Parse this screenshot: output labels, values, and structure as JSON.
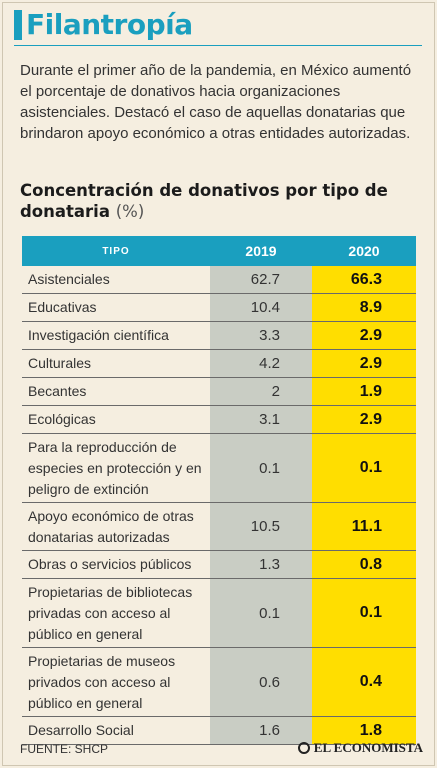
{
  "header": {
    "title": "Filantropía",
    "intro": "Durante el primer año de la pandemia, en México aumentó el porcentaje de donativos hacia organizaciones asistenciales. Destacó el caso de aquellas donatarias que brindaron apoyo económico a otras entidades autorizadas."
  },
  "chart_data": {
    "type": "table",
    "title": "Concentración de donativos por tipo de donataria",
    "unit": "(%)",
    "columns": [
      "TIPO",
      "2019",
      "2020"
    ],
    "rows": [
      {
        "tipo": "Asistenciales",
        "v2019": "62.7",
        "v2020": "66.3"
      },
      {
        "tipo": "Educativas",
        "v2019": "10.4",
        "v2020": "8.9"
      },
      {
        "tipo": "Investigación científica",
        "v2019": "3.3",
        "v2020": "2.9"
      },
      {
        "tipo": "Culturales",
        "v2019": "4.2",
        "v2020": "2.9"
      },
      {
        "tipo": "Becantes",
        "v2019": "2",
        "v2020": "1.9"
      },
      {
        "tipo": "Ecológicas",
        "v2019": "3.1",
        "v2020": "2.9"
      },
      {
        "tipo": "Para la reproducción de especies en protección y en peligro de extinción",
        "v2019": "0.1",
        "v2020": "0.1"
      },
      {
        "tipo": "Apoyo económico de otras donatarias autorizadas",
        "v2019": "10.5",
        "v2020": "11.1"
      },
      {
        "tipo": "Obras o servicios públicos",
        "v2019": "1.3",
        "v2020": "0.8"
      },
      {
        "tipo": "Propietarias de bibliotecas privadas con acceso al público en general",
        "v2019": "0.1",
        "v2020": "0.1"
      },
      {
        "tipo": "Propietarias de museos privados con acceso al público en general",
        "v2019": "0.6",
        "v2020": "0.4"
      },
      {
        "tipo": "Desarrollo Social",
        "v2019": "1.6",
        "v2020": "1.8"
      }
    ]
  },
  "footer": {
    "source": "FUENTE: SHCP",
    "brand": "EL ECONOMISTA"
  },
  "colors": {
    "accent": "#1a9fbf",
    "col2019": "#c9cdc4",
    "col2020": "#ffde00",
    "background": "#f5eee0"
  }
}
